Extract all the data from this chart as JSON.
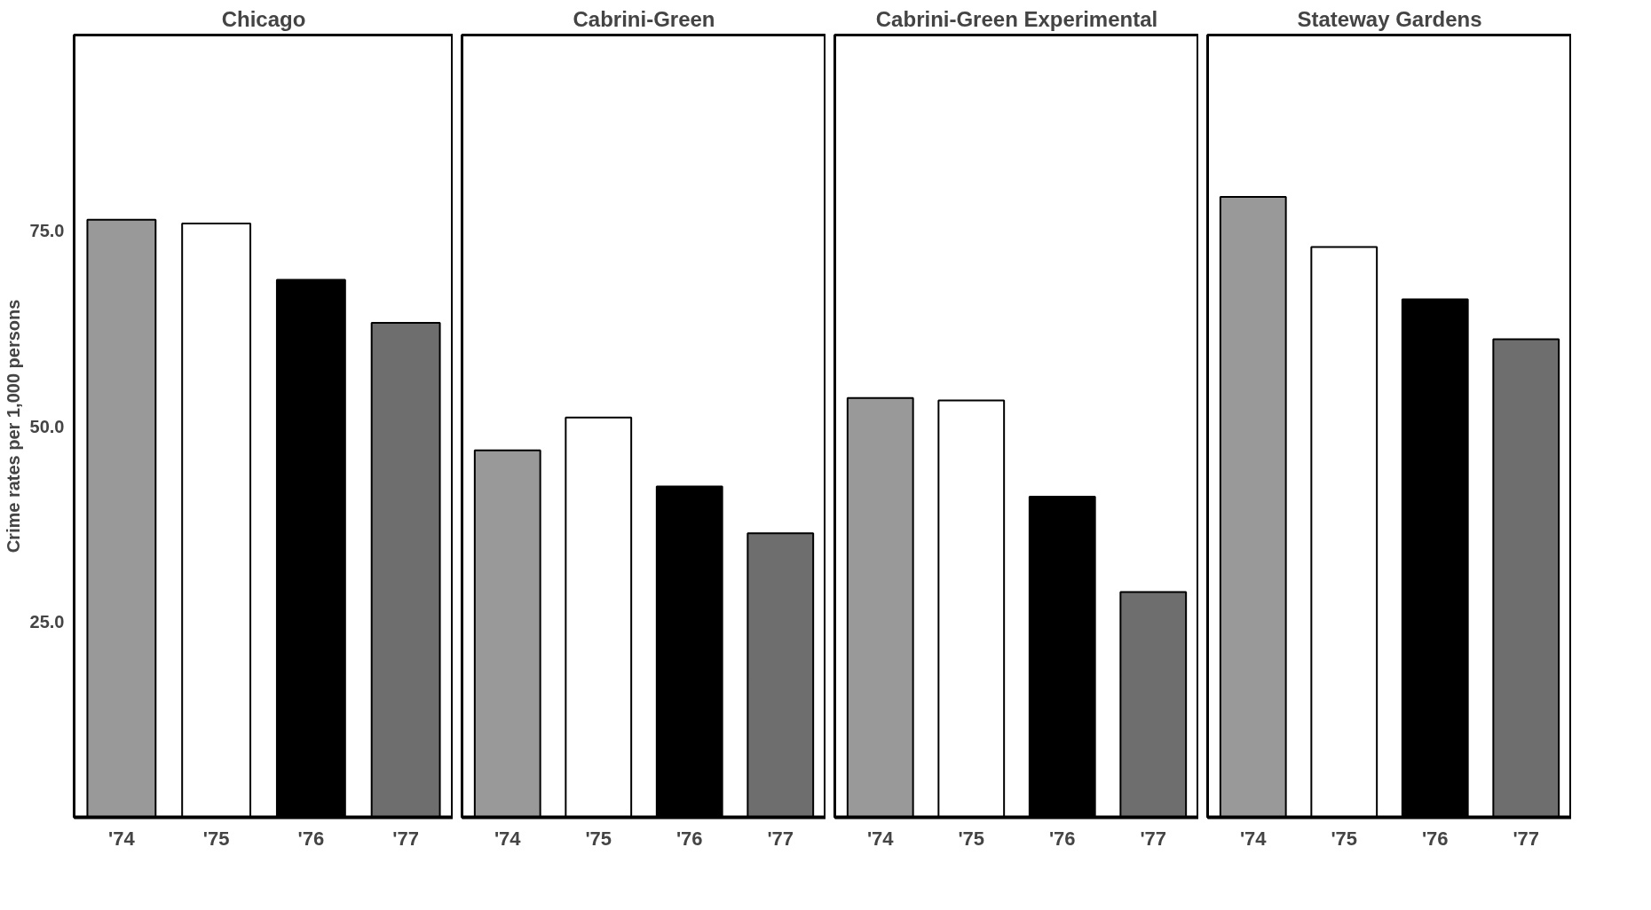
{
  "chart_data": [
    {
      "type": "bar",
      "title": "Chicago",
      "ylabel": "Crime rates per 1,000 persons",
      "categories": [
        "'74",
        "'75",
        "'76",
        "'77"
      ],
      "values": [
        76.4,
        75.9,
        68.7,
        63.2
      ],
      "colors": [
        "#999999",
        "#ffffff",
        "#000000",
        "#6e6e6e"
      ],
      "ylim": [
        0,
        100
      ],
      "yticks": [
        {
          "value": 25,
          "label": "25.0"
        },
        {
          "value": 50,
          "label": "50.0"
        },
        {
          "value": 75,
          "label": "75.0"
        }
      ],
      "grid": false
    },
    {
      "type": "bar",
      "title": "Cabrini-Green",
      "categories": [
        "'74",
        "'75",
        "'76",
        "'77"
      ],
      "values": [
        46.9,
        51.1,
        42.3,
        36.3
      ],
      "colors": [
        "#999999",
        "#ffffff",
        "#000000",
        "#6e6e6e"
      ],
      "ylim": [
        0,
        100
      ],
      "tick_labels": "x",
      "grid": false
    },
    {
      "type": "bar",
      "title": "Cabrini-Green Experimental",
      "categories": [
        "'74",
        "'75",
        "'76",
        "'77"
      ],
      "values": [
        53.6,
        53.3,
        41.0,
        28.8
      ],
      "colors": [
        "#999999",
        "#ffffff",
        "#000000",
        "#6e6e6e"
      ],
      "ylim": [
        0,
        100
      ],
      "tick_labels": "x",
      "grid": false
    },
    {
      "type": "bar",
      "title": "Stateway Gardens",
      "categories": [
        "'74",
        "'75",
        "'76",
        "'77"
      ],
      "values": [
        79.3,
        72.9,
        66.2,
        61.1
      ],
      "colors": [
        "#999999",
        "#ffffff",
        "#000000",
        "#6e6e6e"
      ],
      "ylim": [
        0,
        100
      ],
      "tick_labels": "x",
      "grid": false
    }
  ]
}
